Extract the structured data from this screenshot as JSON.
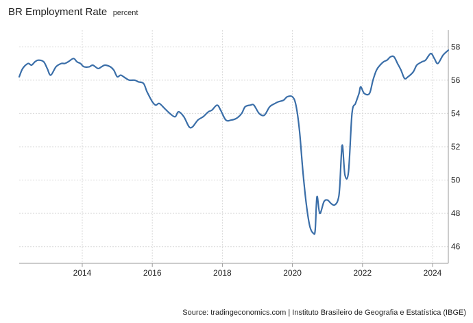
{
  "header": {
    "title": "BR Employment Rate",
    "subtitle": "percent"
  },
  "footer": {
    "source": "Source: tradingeconomics.com | Instituto Brasileiro de Geografia e Estatística (IBGE)"
  },
  "colors": {
    "line": "#3a6ea8",
    "grid": "#d9d9d9",
    "axis": "#999999"
  },
  "chart_data": {
    "type": "line",
    "title": "BR Employment Rate",
    "subtitle": "percent",
    "xlabel": "",
    "ylabel": "",
    "xlim": [
      2012.2,
      2024.45
    ],
    "ylim": [
      45,
      59
    ],
    "x_ticks": [
      2014,
      2016,
      2018,
      2020,
      2022,
      2024
    ],
    "x_tick_labels": [
      "2014",
      "2016",
      "2018",
      "2020",
      "2022",
      "2024"
    ],
    "y_ticks": [
      46,
      48,
      50,
      52,
      54,
      56,
      58
    ],
    "y_tick_labels": [
      "46",
      "48",
      "50",
      "52",
      "54",
      "56",
      "58"
    ],
    "grid": true,
    "series": [
      {
        "values": [
          [
            2012.2,
            56.2
          ],
          [
            2012.3,
            56.7
          ],
          [
            2012.45,
            57.0
          ],
          [
            2012.55,
            56.9
          ],
          [
            2012.65,
            57.1
          ],
          [
            2012.75,
            57.2
          ],
          [
            2012.9,
            57.1
          ],
          [
            2013.0,
            56.7
          ],
          [
            2013.1,
            56.3
          ],
          [
            2013.25,
            56.8
          ],
          [
            2013.4,
            57.0
          ],
          [
            2013.5,
            57.0
          ],
          [
            2013.6,
            57.1
          ],
          [
            2013.75,
            57.3
          ],
          [
            2013.85,
            57.1
          ],
          [
            2013.95,
            57.0
          ],
          [
            2014.05,
            56.8
          ],
          [
            2014.2,
            56.8
          ],
          [
            2014.3,
            56.9
          ],
          [
            2014.45,
            56.7
          ],
          [
            2014.55,
            56.8
          ],
          [
            2014.65,
            56.9
          ],
          [
            2014.8,
            56.8
          ],
          [
            2014.9,
            56.6
          ],
          [
            2015.0,
            56.2
          ],
          [
            2015.1,
            56.3
          ],
          [
            2015.25,
            56.1
          ],
          [
            2015.35,
            56.0
          ],
          [
            2015.5,
            56.0
          ],
          [
            2015.6,
            55.9
          ],
          [
            2015.75,
            55.8
          ],
          [
            2015.85,
            55.3
          ],
          [
            2016.0,
            54.7
          ],
          [
            2016.1,
            54.5
          ],
          [
            2016.2,
            54.6
          ],
          [
            2016.35,
            54.3
          ],
          [
            2016.5,
            54.0
          ],
          [
            2016.65,
            53.8
          ],
          [
            2016.75,
            54.1
          ],
          [
            2016.9,
            53.8
          ],
          [
            2017.05,
            53.2
          ],
          [
            2017.15,
            53.2
          ],
          [
            2017.3,
            53.6
          ],
          [
            2017.45,
            53.8
          ],
          [
            2017.6,
            54.1
          ],
          [
            2017.7,
            54.2
          ],
          [
            2017.85,
            54.5
          ],
          [
            2017.95,
            54.2
          ],
          [
            2018.1,
            53.6
          ],
          [
            2018.25,
            53.6
          ],
          [
            2018.4,
            53.7
          ],
          [
            2018.55,
            54.0
          ],
          [
            2018.65,
            54.4
          ],
          [
            2018.8,
            54.5
          ],
          [
            2018.9,
            54.5
          ],
          [
            2019.05,
            54.0
          ],
          [
            2019.2,
            53.9
          ],
          [
            2019.35,
            54.4
          ],
          [
            2019.5,
            54.6
          ],
          [
            2019.6,
            54.7
          ],
          [
            2019.75,
            54.8
          ],
          [
            2019.85,
            55.0
          ],
          [
            2020.0,
            55.0
          ],
          [
            2020.1,
            54.5
          ],
          [
            2020.2,
            53.0
          ],
          [
            2020.3,
            50.5
          ],
          [
            2020.4,
            48.5
          ],
          [
            2020.5,
            47.2
          ],
          [
            2020.6,
            46.8
          ],
          [
            2020.65,
            47.0
          ],
          [
            2020.7,
            49.0
          ],
          [
            2020.78,
            48.0
          ],
          [
            2020.9,
            48.7
          ],
          [
            2021.0,
            48.8
          ],
          [
            2021.1,
            48.6
          ],
          [
            2021.2,
            48.5
          ],
          [
            2021.3,
            48.8
          ],
          [
            2021.35,
            49.6
          ],
          [
            2021.42,
            52.1
          ],
          [
            2021.5,
            50.3
          ],
          [
            2021.6,
            50.5
          ],
          [
            2021.7,
            54.0
          ],
          [
            2021.8,
            54.6
          ],
          [
            2021.9,
            55.2
          ],
          [
            2021.95,
            55.6
          ],
          [
            2022.05,
            55.2
          ],
          [
            2022.2,
            55.2
          ],
          [
            2022.3,
            56.0
          ],
          [
            2022.4,
            56.6
          ],
          [
            2022.5,
            56.9
          ],
          [
            2022.6,
            57.1
          ],
          [
            2022.7,
            57.2
          ],
          [
            2022.8,
            57.4
          ],
          [
            2022.9,
            57.4
          ],
          [
            2023.0,
            57.0
          ],
          [
            2023.1,
            56.6
          ],
          [
            2023.2,
            56.1
          ],
          [
            2023.3,
            56.2
          ],
          [
            2023.45,
            56.5
          ],
          [
            2023.55,
            56.9
          ],
          [
            2023.7,
            57.1
          ],
          [
            2023.8,
            57.2
          ],
          [
            2023.95,
            57.6
          ],
          [
            2024.05,
            57.3
          ],
          [
            2024.15,
            57.0
          ],
          [
            2024.3,
            57.5
          ],
          [
            2024.45,
            57.8
          ]
        ]
      }
    ]
  }
}
